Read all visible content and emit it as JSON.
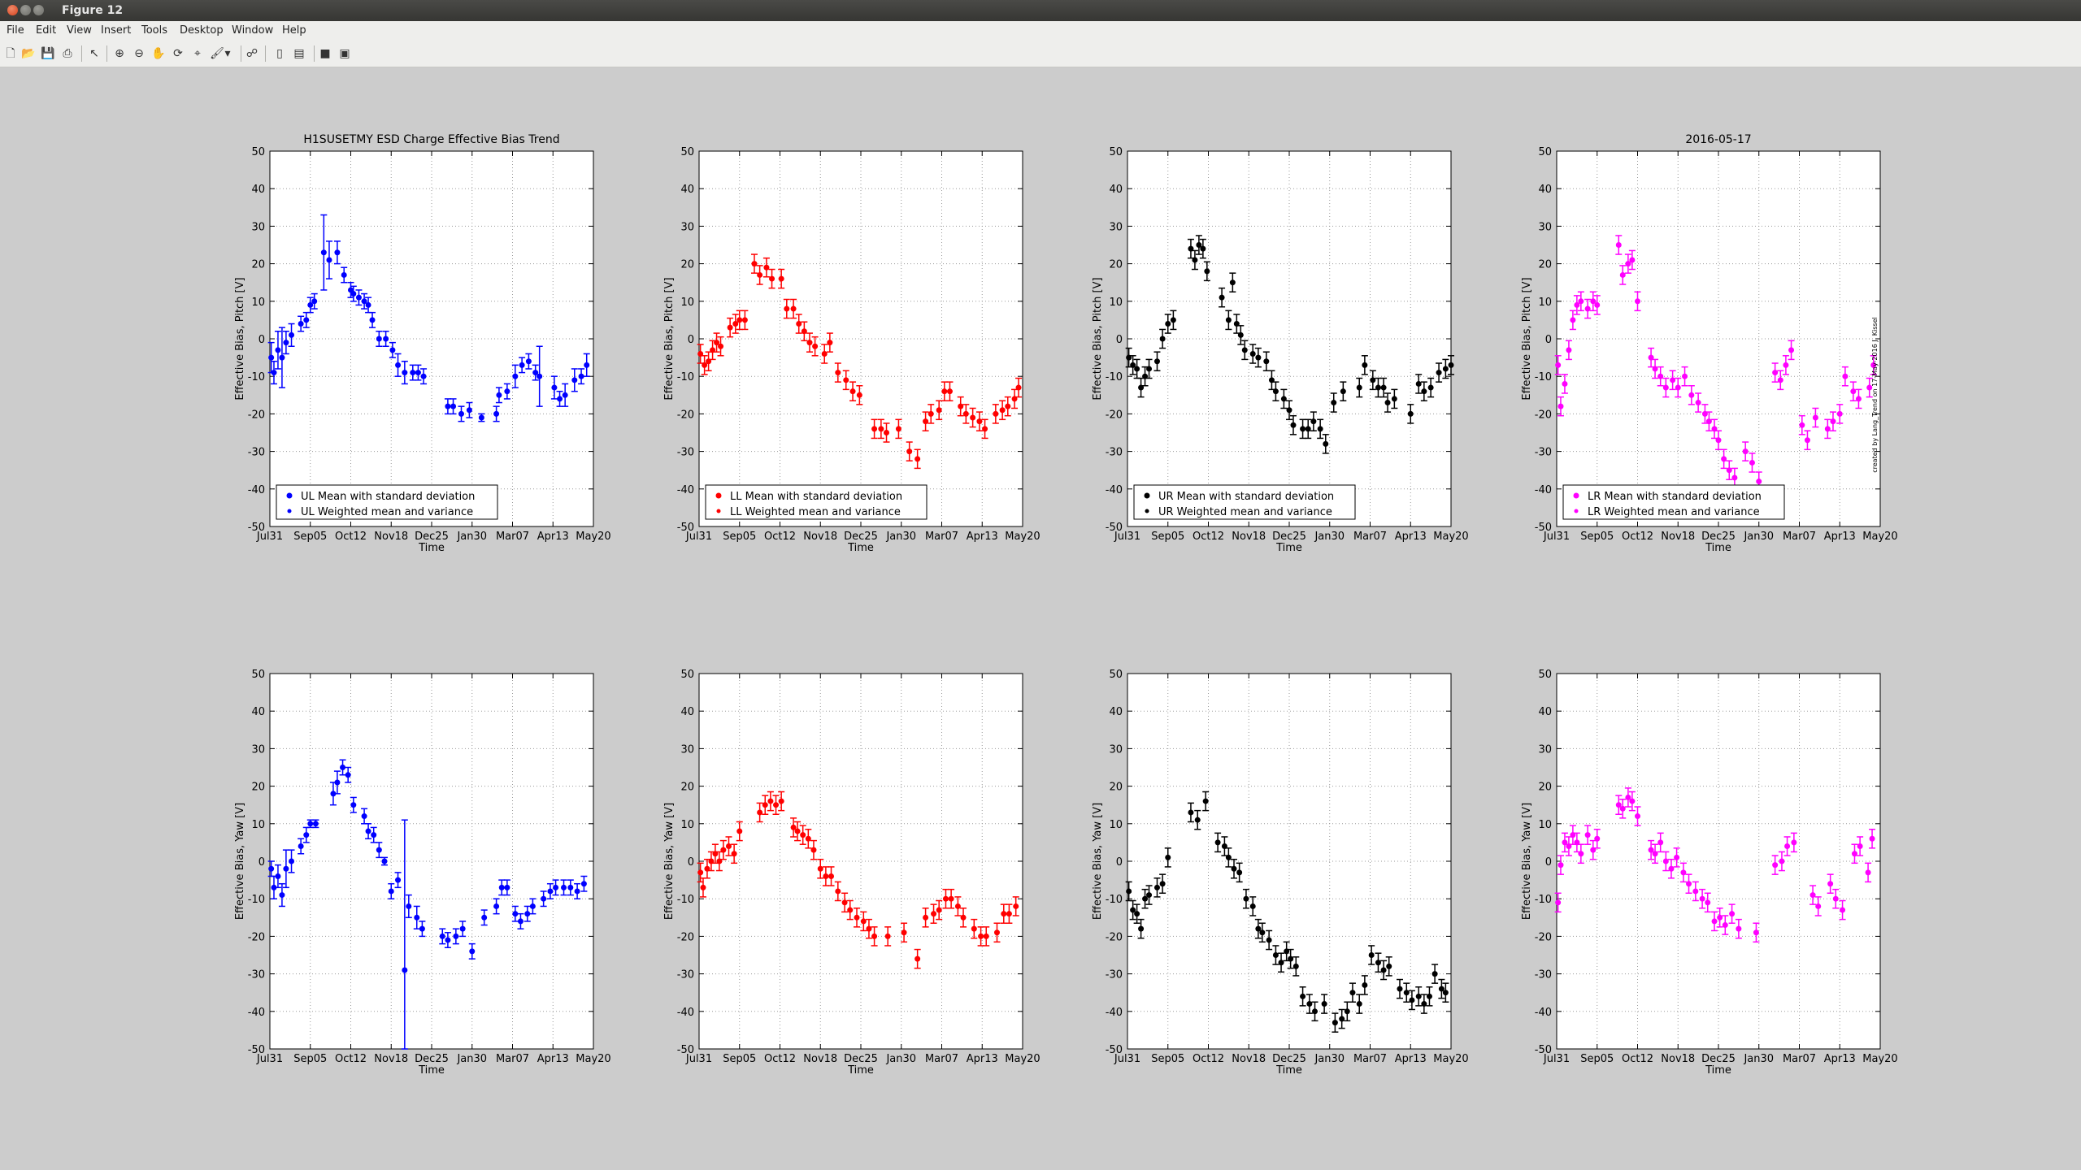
{
  "window": {
    "title": "Figure 12"
  },
  "menu": [
    "File",
    "Edit",
    "View",
    "Insert",
    "Tools",
    "Desktop",
    "Window",
    "Help"
  ],
  "toolbar": [
    "new-figure-icon",
    "open-file-icon",
    "save-icon",
    "print-icon",
    "edit-plot-arrow-icon",
    "zoom-in-icon",
    "zoom-out-icon",
    "pan-hand-icon",
    "rotate-3d-icon",
    "data-cursor-icon",
    "brush-icon",
    "brush-dropdown-icon",
    "link-plot-icon",
    "hide-plot-tools-icon",
    "show-plot-tools-icon",
    "colorbar-icon",
    "legend-icon"
  ],
  "figure": {
    "suptitle": "H1SUSETMY ESD Charge Effective Bias Trend",
    "date_label": "2016-05-17",
    "credit": "created by Lang_Trend on 17-May-2016 J. Kissel",
    "pitch_ylabel": "Effective Bias, Pitch [V]",
    "yaw_ylabel": "Effective Bias, Yaw [V]",
    "xlabel": "Time",
    "xticks": [
      "Jul31",
      "Sep05",
      "Oct12",
      "Nov18",
      "Dec25",
      "Jan30",
      "Mar07",
      "Apr13",
      "May20"
    ],
    "yticks": [
      "-50",
      "-40",
      "-30",
      "-20",
      "-10",
      "0",
      "10",
      "20",
      "30",
      "40",
      "50"
    ]
  },
  "chart_data": [
    {
      "type": "scatter",
      "panel": "UL pitch",
      "color": "#0000ff",
      "ylim": [
        -50,
        50
      ],
      "legend": [
        "UL Mean with standard deviation",
        "UL Weighted mean and variance"
      ],
      "x": [
        0.1,
        0.3,
        0.6,
        0.9,
        1.2,
        1.6,
        2.3,
        2.7,
        3.0,
        3.3,
        4.0,
        4.4,
        5.0,
        5.5,
        6.0,
        6.2,
        6.6,
        7.0,
        7.3,
        7.6,
        8.1,
        8.6,
        9.1,
        9.5,
        10.0,
        10.6,
        11.0,
        11.4,
        13.2,
        13.6,
        14.2,
        14.8,
        15.7,
        16.8,
        17.0,
        17.6,
        18.2,
        18.7,
        19.2,
        19.7,
        20.0,
        21.1,
        21.5,
        21.9,
        22.6,
        23.1,
        23.5
      ],
      "y": [
        -5,
        -9,
        -3,
        -5,
        -1,
        1,
        4,
        5,
        9,
        10,
        23,
        21,
        23,
        17,
        13,
        12,
        11,
        10,
        9,
        5,
        0,
        0,
        -3,
        -7,
        -9,
        -9,
        -9,
        -10,
        -18,
        -18,
        -20,
        -19,
        -21,
        -20,
        -15,
        -14,
        -10,
        -7,
        -6,
        -9,
        -10,
        -13,
        -16,
        -15,
        -11,
        -10,
        -7
      ],
      "err": [
        4,
        3,
        5,
        8,
        3,
        3,
        2,
        2,
        2,
        2,
        10,
        5,
        3,
        2,
        2,
        2,
        2,
        2,
        2,
        2,
        2,
        2,
        2,
        3,
        3,
        2,
        2,
        2,
        2,
        2,
        2,
        2,
        1,
        2,
        2,
        2,
        3,
        2,
        2,
        2,
        8,
        3,
        2,
        3,
        3,
        2,
        3
      ]
    },
    {
      "type": "scatter",
      "panel": "LL pitch",
      "color": "#ff0000",
      "ylim": [
        -50,
        50
      ],
      "legend": [
        "LL Mean with standard deviation",
        "LL Weighted mean and variance"
      ],
      "x": [
        0.1,
        0.4,
        0.7,
        1.0,
        1.3,
        1.6,
        2.3,
        2.7,
        3.0,
        3.4,
        4.1,
        4.5,
        5.0,
        5.4,
        6.1,
        6.5,
        7.0,
        7.4,
        7.8,
        8.2,
        8.6,
        9.3,
        9.7,
        10.3,
        10.9,
        11.4,
        11.9,
        13.0,
        13.5,
        13.9,
        14.8,
        15.6,
        16.2,
        16.8,
        17.2,
        17.8,
        18.2,
        18.6,
        19.4,
        19.8,
        20.3,
        20.8,
        21.2,
        22.0,
        22.5,
        22.9,
        23.4,
        23.7
      ],
      "y": [
        -4,
        -7,
        -6,
        -3,
        -1,
        -2,
        3,
        4,
        5,
        5,
        20,
        17,
        19,
        16,
        16,
        8,
        8,
        4,
        2,
        -1,
        -2,
        -4,
        -1,
        -9,
        -11,
        -14,
        -15,
        -24,
        -24,
        -25,
        -24,
        -30,
        -32,
        -22,
        -20,
        -19,
        -14,
        -14,
        -18,
        -20,
        -21,
        -22,
        -24,
        -20,
        -19,
        -18,
        -16,
        -13
      ]
    },
    {
      "type": "scatter",
      "panel": "UR pitch",
      "color": "#000000",
      "ylim": [
        -50,
        50
      ],
      "legend": [
        "UR Mean with standard deviation",
        "UR Weighted mean and variance"
      ],
      "x": [
        0.1,
        0.4,
        0.7,
        1.0,
        1.3,
        1.6,
        2.2,
        2.6,
        3.0,
        3.4,
        4.7,
        5.0,
        5.3,
        5.6,
        5.9,
        7.0,
        7.5,
        7.8,
        8.1,
        8.4,
        8.7,
        9.3,
        9.7,
        10.3,
        10.7,
        11.0,
        11.6,
        12.0,
        12.3,
        13.0,
        13.4,
        13.8,
        14.3,
        14.7,
        15.3,
        16.0,
        17.2,
        17.6,
        18.2,
        18.6,
        19.0,
        19.3,
        19.8,
        21.0,
        21.6,
        22.0,
        22.5,
        23.1,
        23.6,
        24.0
      ],
      "y": [
        -5,
        -7,
        -8,
        -13,
        -10,
        -8,
        -6,
        0,
        4,
        5,
        24,
        21,
        25,
        24,
        18,
        11,
        5,
        15,
        4,
        1,
        -3,
        -4,
        -5,
        -6,
        -11,
        -14,
        -16,
        -19,
        -23,
        -24,
        -24,
        -22,
        -24,
        -28,
        -17,
        -14,
        -13,
        -7,
        -11,
        -13,
        -13,
        -17,
        -16,
        -20,
        -12,
        -14,
        -13,
        -9,
        -8,
        -7
      ]
    },
    {
      "type": "scatter",
      "panel": "LR pitch",
      "color": "#ff00ff",
      "ylim": [
        -50,
        50
      ],
      "legend": [
        "LR Mean with standard deviation",
        "LR Weighted mean and variance"
      ],
      "x": [
        0.1,
        0.3,
        0.6,
        0.9,
        1.2,
        1.5,
        1.8,
        2.3,
        2.7,
        3.0,
        4.6,
        4.9,
        5.3,
        5.6,
        6.0,
        7.0,
        7.3,
        7.7,
        8.1,
        8.6,
        9.0,
        9.5,
        10.0,
        10.5,
        11.0,
        11.3,
        11.7,
        12.0,
        12.4,
        12.8,
        13.2,
        14.0,
        14.5,
        15.0,
        16.2,
        16.6,
        17.0,
        17.4,
        18.2,
        18.6,
        19.2,
        20.1,
        20.5,
        21.0,
        21.4,
        22.0,
        22.4,
        23.2,
        23.5
      ],
      "y": [
        -7,
        -18,
        -12,
        -3,
        5,
        9,
        10,
        8,
        10,
        9,
        25,
        17,
        20,
        21,
        10,
        -5,
        -8,
        -10,
        -13,
        -11,
        -13,
        -10,
        -15,
        -17,
        -20,
        -22,
        -24,
        -27,
        -32,
        -35,
        -37,
        -30,
        -33,
        -38,
        -9,
        -11,
        -7,
        -3,
        -23,
        -27,
        -21,
        -24,
        -22,
        -20,
        -10,
        -14,
        -16,
        -13,
        -7
      ]
    },
    {
      "type": "scatter",
      "panel": "UL yaw",
      "color": "#0000ff",
      "ylim": [
        -50,
        50
      ],
      "legend": [],
      "x": [
        0.1,
        0.3,
        0.6,
        0.9,
        1.2,
        1.6,
        2.3,
        2.7,
        3.0,
        3.4,
        4.7,
        5.0,
        5.4,
        5.8,
        6.2,
        7.0,
        7.3,
        7.7,
        8.1,
        8.5,
        9.0,
        9.5,
        10.0,
        10.3,
        10.9,
        11.3,
        12.8,
        13.2,
        13.8,
        14.3,
        15.0,
        15.9,
        16.8,
        17.2,
        17.6,
        18.2,
        18.6,
        19.1,
        19.5,
        20.3,
        20.8,
        21.2,
        21.8,
        22.3,
        22.8,
        23.3
      ],
      "y": [
        -2,
        -7,
        -4,
        -9,
        -2,
        0,
        4,
        7,
        10,
        10,
        18,
        21,
        25,
        23,
        15,
        12,
        8,
        7,
        3,
        0,
        -8,
        -5,
        -29,
        -12,
        -15,
        -18,
        -20,
        -21,
        -20,
        -18,
        -24,
        -15,
        -12,
        -7,
        -7,
        -14,
        -16,
        -14,
        -12,
        -10,
        -8,
        -7,
        -7,
        -7,
        -8,
        -6
      ],
      "err": [
        2,
        3,
        3,
        3,
        5,
        3,
        2,
        2,
        1,
        1,
        3,
        3,
        2,
        2,
        2,
        2,
        2,
        2,
        2,
        1,
        2,
        2,
        40,
        3,
        3,
        2,
        2,
        2,
        2,
        2,
        2,
        2,
        2,
        2,
        2,
        2,
        2,
        2,
        2,
        2,
        2,
        2,
        2,
        2,
        2,
        2
      ]
    },
    {
      "type": "scatter",
      "panel": "LL yaw",
      "color": "#ff0000",
      "ylim": [
        -50,
        50
      ],
      "legend": [],
      "x": [
        0.1,
        0.3,
        0.6,
        0.9,
        1.2,
        1.5,
        1.8,
        2.2,
        2.6,
        3.0,
        4.5,
        4.9,
        5.3,
        5.7,
        6.1,
        7.0,
        7.3,
        7.7,
        8.1,
        8.5,
        9.0,
        9.4,
        9.8,
        10.3,
        10.8,
        11.2,
        11.7,
        12.2,
        12.6,
        13.0,
        14.0,
        15.2,
        16.2,
        16.8,
        17.4,
        17.8,
        18.3,
        18.7,
        19.2,
        19.6,
        20.4,
        20.9,
        21.3,
        22.1,
        22.6,
        23.0,
        23.5
      ],
      "y": [
        -3,
        -7,
        -2,
        0,
        2,
        0,
        3,
        4,
        2,
        8,
        13,
        15,
        16,
        15,
        16,
        9,
        8,
        7,
        6,
        3,
        -2,
        -4,
        -4,
        -8,
        -11,
        -13,
        -15,
        -16,
        -18,
        -20,
        -20,
        -19,
        -26,
        -15,
        -14,
        -13,
        -10,
        -10,
        -12,
        -15,
        -18,
        -20,
        -20,
        -19,
        -14,
        -14,
        -12
      ]
    },
    {
      "type": "scatter",
      "panel": "UR yaw",
      "color": "#000000",
      "ylim": [
        -50,
        50
      ],
      "legend": [],
      "x": [
        0.1,
        0.4,
        0.7,
        1.0,
        1.3,
        1.6,
        2.2,
        2.6,
        3.0,
        4.7,
        5.2,
        5.8,
        6.7,
        7.2,
        7.5,
        7.9,
        8.3,
        8.8,
        9.3,
        9.7,
        10.0,
        10.5,
        11.0,
        11.4,
        11.8,
        12.1,
        12.5,
        13.0,
        13.5,
        13.9,
        14.6,
        15.4,
        15.9,
        16.3,
        16.7,
        17.2,
        17.6,
        18.1,
        18.6,
        19.0,
        19.4,
        20.2,
        20.7,
        21.1,
        21.6,
        22.0,
        22.4,
        22.8,
        23.3,
        23.6
      ],
      "y": [
        -8,
        -13,
        -14,
        -18,
        -10,
        -9,
        -7,
        -6,
        1,
        13,
        11,
        16,
        5,
        4,
        1,
        -2,
        -3,
        -10,
        -12,
        -18,
        -19,
        -21,
        -25,
        -27,
        -24,
        -26,
        -28,
        -36,
        -38,
        -40,
        -38,
        -43,
        -42,
        -40,
        -35,
        -38,
        -33,
        -25,
        -27,
        -29,
        -28,
        -34,
        -35,
        -37,
        -36,
        -38,
        -36,
        -30,
        -34,
        -35
      ]
    },
    {
      "type": "scatter",
      "panel": "LR yaw",
      "color": "#ff00ff",
      "ylim": [
        -50,
        50
      ],
      "legend": [],
      "x": [
        0.1,
        0.3,
        0.6,
        0.9,
        1.2,
        1.5,
        1.8,
        2.3,
        2.7,
        3.0,
        4.6,
        4.9,
        5.3,
        5.6,
        6.0,
        7.0,
        7.3,
        7.7,
        8.1,
        8.5,
        8.9,
        9.4,
        9.8,
        10.3,
        10.8,
        11.2,
        11.7,
        12.1,
        12.5,
        13.0,
        13.5,
        14.8,
        16.2,
        16.7,
        17.1,
        17.6,
        19.0,
        19.4,
        20.3,
        20.7,
        21.2,
        22.1,
        22.5,
        23.1,
        23.4
      ],
      "y": [
        -11,
        -1,
        5,
        4,
        7,
        5,
        2,
        7,
        3,
        6,
        15,
        14,
        17,
        16,
        12,
        3,
        2,
        5,
        0,
        -2,
        1,
        -3,
        -6,
        -8,
        -10,
        -11,
        -16,
        -15,
        -17,
        -14,
        -18,
        -19,
        -1,
        0,
        4,
        5,
        -9,
        -12,
        -6,
        -10,
        -13,
        2,
        4,
        -3,
        6
      ]
    }
  ]
}
